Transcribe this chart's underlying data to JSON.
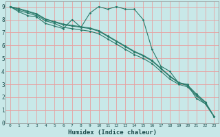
{
  "title": "",
  "xlabel": "Humidex (Indice chaleur)",
  "bg_color": "#c8e8e8",
  "grid_color": "#e8a0a0",
  "line_color": "#2a7a6a",
  "xlim": [
    -0.5,
    23.5
  ],
  "ylim": [
    0,
    9.4
  ],
  "xticks": [
    0,
    1,
    2,
    3,
    4,
    5,
    6,
    7,
    8,
    9,
    10,
    11,
    12,
    13,
    14,
    15,
    16,
    17,
    18,
    19,
    20,
    21,
    22,
    23
  ],
  "yticks": [
    0,
    1,
    2,
    3,
    4,
    5,
    6,
    7,
    8,
    9
  ],
  "lines": [
    {
      "x": [
        0,
        1,
        2,
        3,
        4,
        5,
        6,
        7,
        8,
        9,
        10,
        11,
        12,
        13,
        14,
        15,
        16,
        17,
        18,
        19,
        20,
        21,
        22,
        23
      ],
      "y": [
        9,
        8.6,
        8.3,
        8.2,
        7.7,
        7.5,
        7.3,
        8.0,
        7.4,
        8.5,
        9.0,
        8.8,
        9.0,
        8.8,
        8.8,
        8.0,
        5.7,
        4.4,
        4.0,
        3.1,
        3.0,
        1.9,
        1.5,
        0.5
      ]
    },
    {
      "x": [
        0,
        1,
        2,
        3,
        4,
        5,
        6,
        7,
        8,
        9,
        10,
        11,
        12,
        13,
        14,
        15,
        16,
        17,
        18,
        19,
        20,
        21,
        22,
        23
      ],
      "y": [
        9,
        8.7,
        8.5,
        8.3,
        7.9,
        7.7,
        7.4,
        7.3,
        7.2,
        7.1,
        6.9,
        6.5,
        6.1,
        5.7,
        5.3,
        5.0,
        4.6,
        4.0,
        3.4,
        3.0,
        2.8,
        2.1,
        1.5,
        0.5
      ]
    },
    {
      "x": [
        0,
        1,
        2,
        3,
        4,
        5,
        6,
        7,
        8,
        9,
        10,
        11,
        12,
        13,
        14,
        15,
        16,
        17,
        18,
        19,
        20,
        21,
        22,
        23
      ],
      "y": [
        9,
        8.8,
        8.6,
        8.4,
        8.0,
        7.8,
        7.6,
        7.5,
        7.4,
        7.3,
        7.1,
        6.7,
        6.3,
        5.9,
        5.5,
        5.2,
        4.8,
        4.2,
        3.6,
        3.1,
        2.9,
        2.2,
        1.6,
        0.5
      ]
    },
    {
      "x": [
        0,
        1,
        2,
        3,
        4,
        5,
        6,
        7,
        8,
        9,
        10,
        11,
        12,
        13,
        14,
        15,
        16,
        17,
        18,
        19,
        20,
        21,
        22,
        23
      ],
      "y": [
        9,
        8.85,
        8.65,
        8.45,
        8.05,
        7.85,
        7.65,
        7.55,
        7.45,
        7.35,
        7.15,
        6.75,
        6.35,
        5.95,
        5.55,
        5.25,
        4.85,
        4.25,
        3.65,
        3.15,
        2.95,
        2.25,
        1.65,
        0.5
      ]
    }
  ]
}
